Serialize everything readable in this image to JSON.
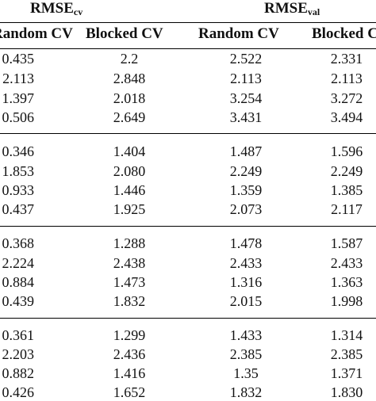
{
  "header": {
    "rmse_cv": {
      "base": "RMSE",
      "sub": "cv"
    },
    "rmse_val": {
      "base": "RMSE",
      "sub": "val"
    }
  },
  "subheaders": [
    "Random CV",
    "Blocked CV",
    "Random CV",
    "Blocked CV"
  ],
  "groups": [
    {
      "rows": [
        [
          "0.435",
          "2.2",
          "2.522",
          "2.331"
        ],
        [
          "2.113",
          "2.848",
          "2.113",
          "2.113"
        ],
        [
          "1.397",
          "2.018",
          "3.254",
          "3.272"
        ],
        [
          "0.506",
          "2.649",
          "3.431",
          "3.494"
        ]
      ]
    },
    {
      "rows": [
        [
          "0.346",
          "1.404",
          "1.487",
          "1.596"
        ],
        [
          "1.853",
          "2.080",
          "2.249",
          "2.249"
        ],
        [
          "0.933",
          "1.446",
          "1.359",
          "1.385"
        ],
        [
          "0.437",
          "1.925",
          "2.073",
          "2.117"
        ]
      ]
    },
    {
      "rows": [
        [
          "0.368",
          "1.288",
          "1.478",
          "1.587"
        ],
        [
          "2.224",
          "2.438",
          "2.433",
          "2.433"
        ],
        [
          "0.884",
          "1.473",
          "1.316",
          "1.363"
        ],
        [
          "0.439",
          "1.832",
          "2.015",
          "1.998"
        ]
      ]
    },
    {
      "rows": [
        [
          "0.361",
          "1.299",
          "1.433",
          "1.314"
        ],
        [
          "2.203",
          "2.436",
          "2.385",
          "2.385"
        ],
        [
          "0.882",
          "1.416",
          "1.35",
          "1.371"
        ],
        [
          "0.426",
          "1.652",
          "1.832",
          "1.830"
        ]
      ]
    }
  ]
}
